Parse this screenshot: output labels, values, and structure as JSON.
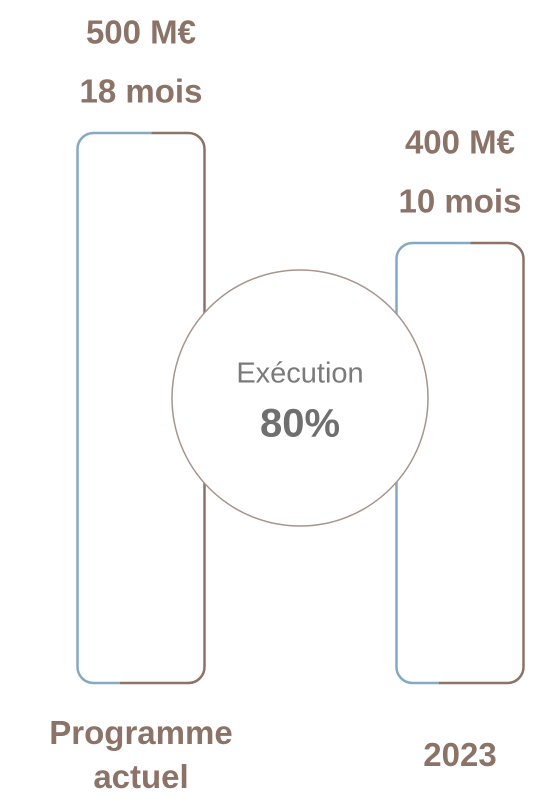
{
  "chart_data": {
    "type": "bar",
    "categories": [
      "Programme actuel",
      "2023"
    ],
    "values": [
      500,
      400
    ],
    "value_labels": [
      "500 M€",
      "400 M€"
    ],
    "sublabels": [
      "18 mois",
      "10 mois"
    ],
    "ylim": [
      0,
      500
    ],
    "color": "#8b7368",
    "annotation": {
      "text": "Exécution",
      "label": "80%"
    }
  }
}
